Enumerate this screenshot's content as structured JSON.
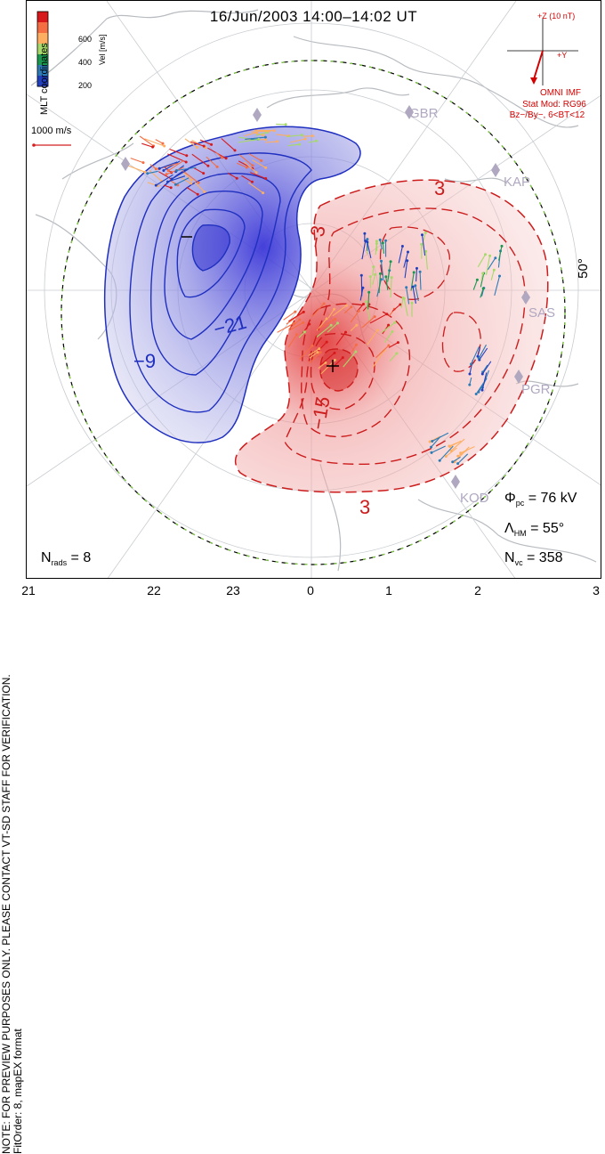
{
  "title": "16/Jun/2003 14:00–14:02 UT",
  "side_note": {
    "line1": "NOTE: FOR PREVIEW PURPOSES ONLY. PLEASE CONTACT VT-SD STAFF FOR VERIFICATION.",
    "line2": "FitOrder: 8, mapEX format"
  },
  "coordinates_label": "MLT coordinates",
  "colorbar": {
    "label": "Vel [m/s]",
    "ticks": [
      "600",
      "400",
      "200"
    ],
    "colors": [
      "#d7191c",
      "#f46d43",
      "#fdae61",
      "#a6d96a",
      "#1a9850",
      "#2c7bb6",
      "#1f3fbf"
    ]
  },
  "scale_vector": "1000 m/s",
  "imf": {
    "z_label": "+Z (10 nT)",
    "y_label": "+Y",
    "source": "OMNI IMF",
    "model": "Stat Mod: RG96",
    "condition": "Bz−/By−, 6<BT<12"
  },
  "latitude_label": "50°",
  "stations": [
    "GBR",
    "KAP",
    "SAS",
    "PGR",
    "KOD"
  ],
  "contour_labels": [
    "−",
    "+",
    "−9",
    "−21",
    "−15",
    "3",
    "3",
    "−3",
    "3"
  ],
  "stats": {
    "phi_pc_symbol": "Φ",
    "phi_pc_sub": "pc",
    "phi_pc_value": "= 76 kV",
    "lambda_hm_symbol": "Λ",
    "lambda_hm_sub": "HM",
    "lambda_hm_value": "= 55°",
    "n_vc_symbol": "N",
    "n_vc_sub": "vc",
    "n_vc_value": "= 358",
    "n_rads_symbol": "N",
    "n_rads_sub": "rads",
    "n_rads_value": "= 8"
  },
  "mlt_ticks": [
    "21",
    "22",
    "23",
    "0",
    "1",
    "2",
    "3"
  ],
  "colors": {
    "negative_cell": "#2b2fcf",
    "positive_cell": "#d42020",
    "heppner_maynard": "#7fd13b",
    "imf": "#d40000",
    "station": "#b0a8c0"
  }
}
